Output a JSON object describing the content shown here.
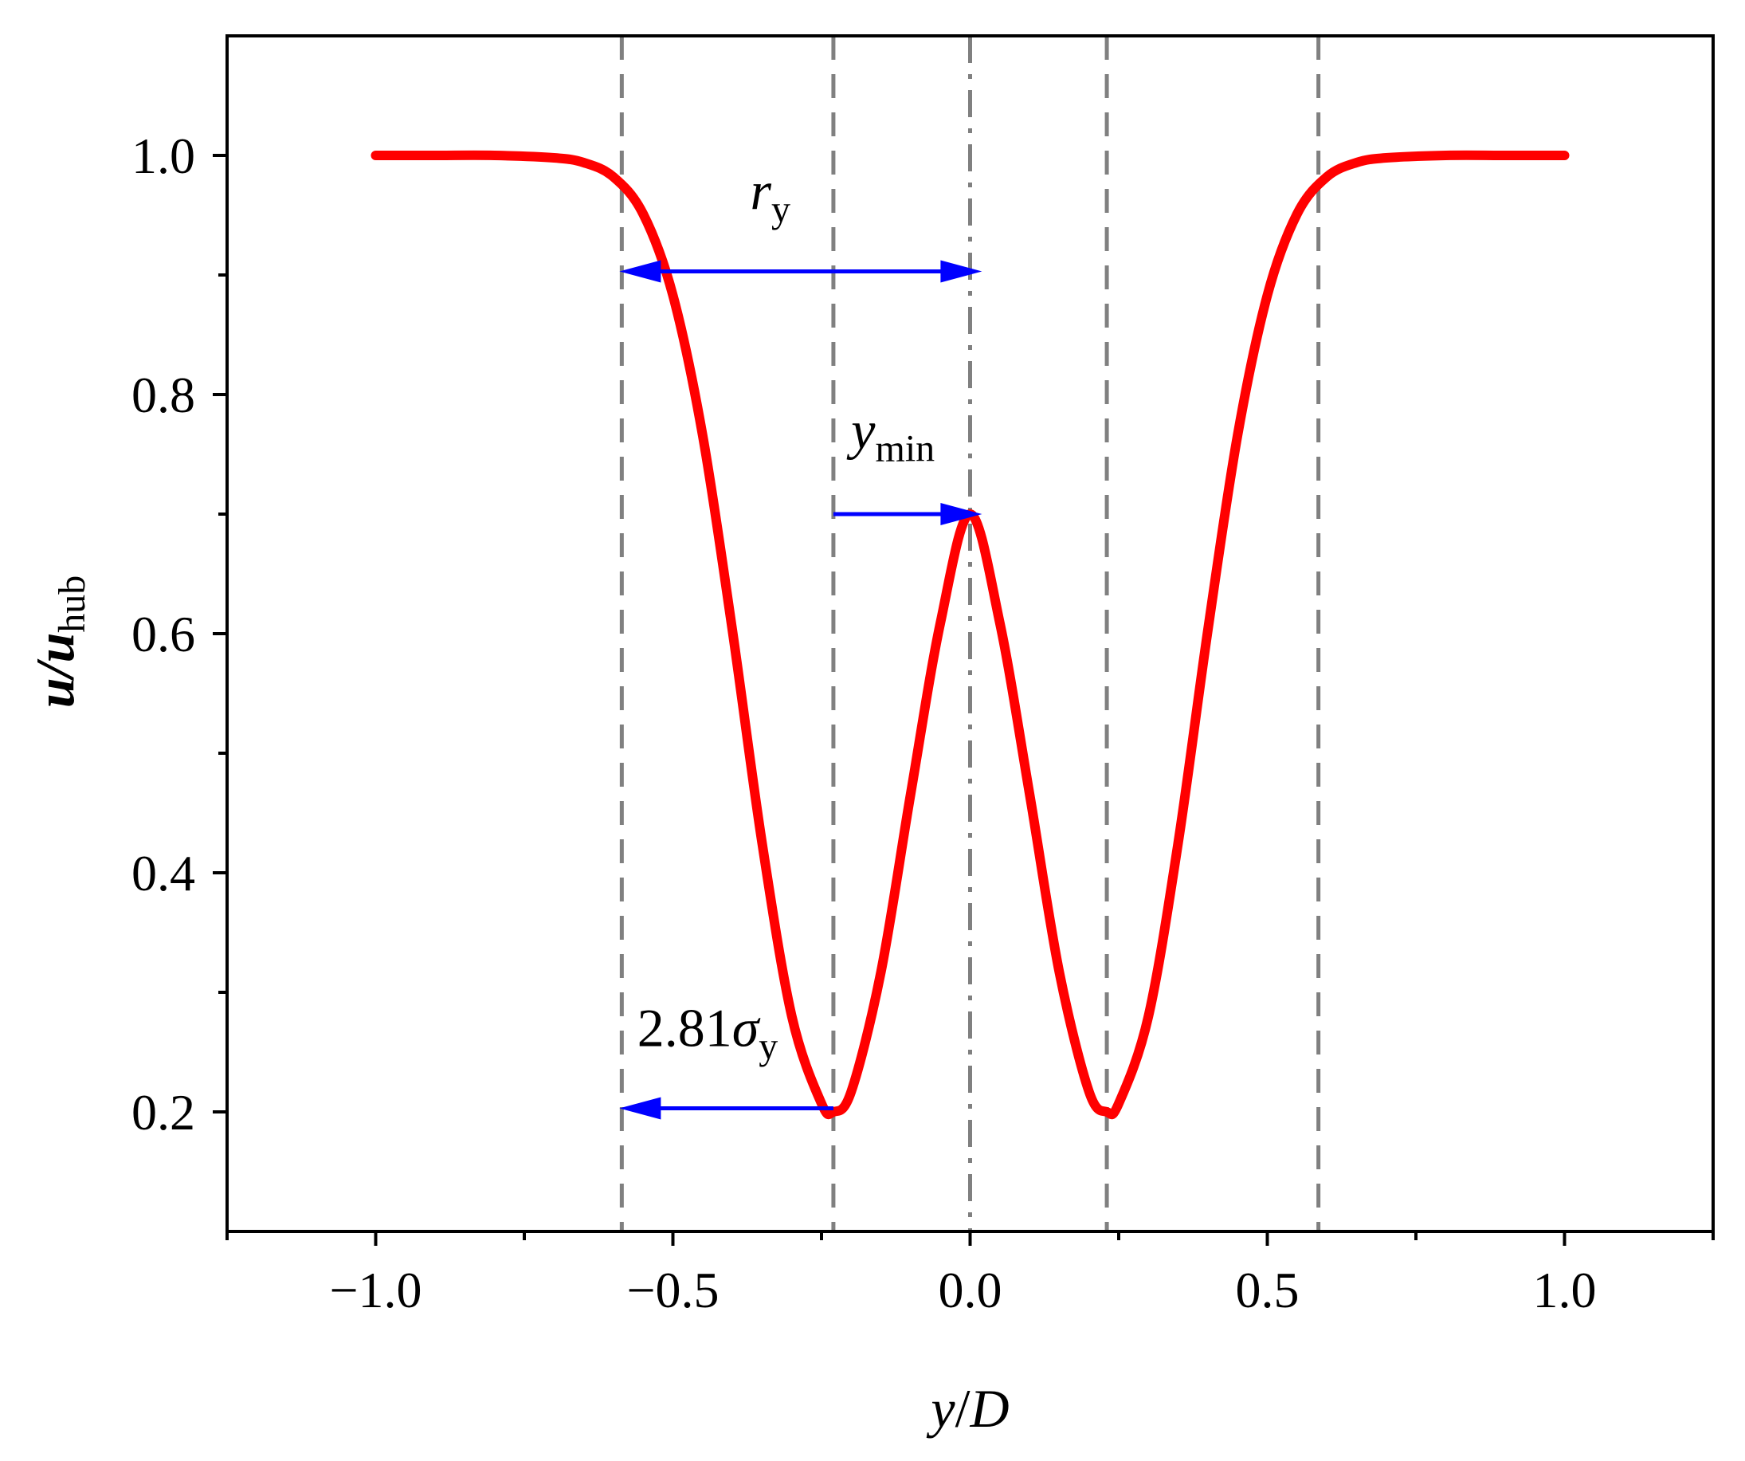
{
  "chart_data": {
    "type": "line",
    "title": "",
    "xlabel": {
      "parts": [
        [
          "y",
          true
        ],
        [
          "/",
          false
        ],
        [
          "D",
          true
        ]
      ]
    },
    "ylabel": {
      "main": "u/u",
      "sub": "hub"
    },
    "xlim": [
      -1.25,
      1.25
    ],
    "ylim": [
      0.1,
      1.1
    ],
    "xticks": [
      -1.0,
      -0.5,
      0.0,
      0.5,
      1.0
    ],
    "xtick_labels": [
      "−1.0",
      "−0.5",
      "0.0",
      "0.5",
      "1.0"
    ],
    "yticks": [
      0.2,
      0.4,
      0.6,
      0.8,
      1.0
    ],
    "ytick_labels": [
      "0.2",
      "0.4",
      "0.6",
      "0.8",
      "1.0"
    ],
    "grid": false,
    "series": [
      {
        "color": "#ff0000",
        "style": "solid",
        "x": [
          -1.0,
          -0.9,
          -0.8,
          -0.7,
          -0.65,
          -0.6,
          -0.55,
          -0.5,
          -0.45,
          -0.4,
          -0.35,
          -0.3,
          -0.25,
          -0.23,
          -0.2,
          -0.15,
          -0.1,
          -0.05,
          0.0,
          0.05,
          0.1,
          0.15,
          0.2,
          0.23,
          0.25,
          0.3,
          0.35,
          0.4,
          0.45,
          0.5,
          0.55,
          0.6,
          0.65,
          0.7,
          0.8,
          0.9,
          1.0
        ],
        "y": [
          1.0,
          1.0,
          1.0,
          0.998,
          0.994,
          0.982,
          0.951,
          0.883,
          0.766,
          0.603,
          0.425,
          0.28,
          0.207,
          0.2,
          0.217,
          0.317,
          0.466,
          0.609,
          0.7,
          0.609,
          0.466,
          0.317,
          0.217,
          0.2,
          0.207,
          0.28,
          0.425,
          0.603,
          0.766,
          0.883,
          0.951,
          0.982,
          0.994,
          0.998,
          1.0,
          1.0,
          1.0
        ]
      }
    ],
    "reference_lines": [
      {
        "x": -0.586,
        "style": "dashed",
        "color": "#808080"
      },
      {
        "x": -0.23,
        "style": "dashed",
        "color": "#808080"
      },
      {
        "x": 0.0,
        "style": "dashdot",
        "color": "#808080"
      },
      {
        "x": 0.23,
        "style": "dashed",
        "color": "#808080"
      },
      {
        "x": 0.586,
        "style": "dashed",
        "color": "#808080"
      }
    ],
    "arrows": [
      {
        "from_x": -0.23,
        "to_x": -0.59,
        "y": 0.903,
        "color": "#0000ff"
      },
      {
        "from_x": -0.23,
        "to_x": 0.02,
        "y": 0.903,
        "color": "#0000ff"
      },
      {
        "from_x": -0.23,
        "to_x": 0.02,
        "y": 0.7,
        "color": "#0000ff"
      },
      {
        "from_x": -0.23,
        "to_x": -0.59,
        "y": 0.203,
        "color": "#0000ff"
      }
    ],
    "annotations": [
      {
        "main": "r",
        "sub": "y",
        "x": -0.37,
        "y": 0.955
      },
      {
        "main": "y",
        "sub": "min",
        "x": -0.2,
        "y": 0.755
      },
      {
        "prefix": "2.81",
        "main": "σ",
        "sub": "y",
        "x": -0.56,
        "y": 0.255
      }
    ]
  }
}
